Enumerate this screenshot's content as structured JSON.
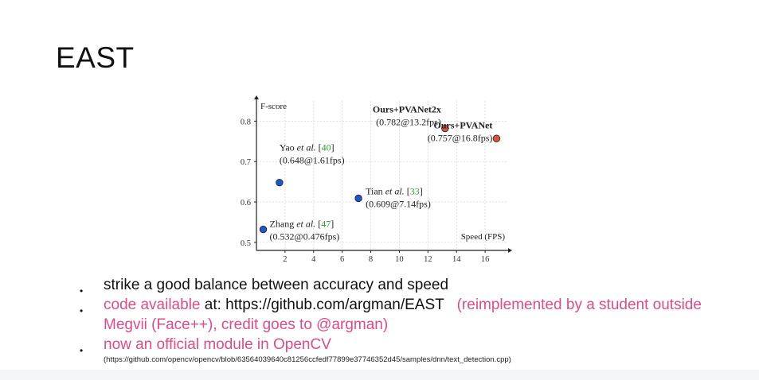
{
  "slide": {
    "title": "EAST"
  },
  "chart_data": {
    "type": "scatter",
    "ylabel": "F-score",
    "xlabel": "Speed (FPS)",
    "xlim": [
      0,
      17.5
    ],
    "ylim": [
      0.48,
      0.85
    ],
    "x_ticks": [
      2,
      4,
      6,
      8,
      10,
      12,
      14,
      16
    ],
    "y_ticks": [
      0.5,
      0.6,
      0.7,
      0.8
    ],
    "grid": true,
    "points": [
      {
        "name": "Zhang",
        "cite": "47",
        "value_label": "(0.532@0.476fps)",
        "x": 0.476,
        "y": 0.532,
        "color": "#2255cc"
      },
      {
        "name": "Yao",
        "cite": "40",
        "value_label": "(0.648@1.61fps)",
        "x": 1.61,
        "y": 0.648,
        "color": "#2255cc"
      },
      {
        "name": "Tian",
        "cite": "33",
        "value_label": "(0.609@7.14fps)",
        "x": 7.14,
        "y": 0.609,
        "color": "#2255cc"
      },
      {
        "name": "Ours+PVANet2x",
        "cite": "",
        "value_label": "(0.782@13.2fps)",
        "x": 13.2,
        "y": 0.782,
        "color": "#e05040"
      },
      {
        "name": "Ours+PVANet",
        "cite": "",
        "value_label": "(0.757@16.8fps)",
        "x": 16.8,
        "y": 0.757,
        "color": "#e05040"
      }
    ],
    "etal": "et al.",
    "cite_color": "#2aa52a"
  },
  "bullets": {
    "b1": "strike a good balance between accuracy and speed",
    "b2_pink": "code available",
    "b2_black": " at: https://github.com/argman/EAST",
    "b2_pink2": "(reimplemented by a student outside Megvii (Face++), credit goes to @argman)",
    "b3": "now an official module in OpenCV",
    "b3_url": "(https://github.com/opencv/opencv/blob/63564039640c81256ccfedf77899e37746352d45/samples/dnn/text_detection.cpp)"
  }
}
